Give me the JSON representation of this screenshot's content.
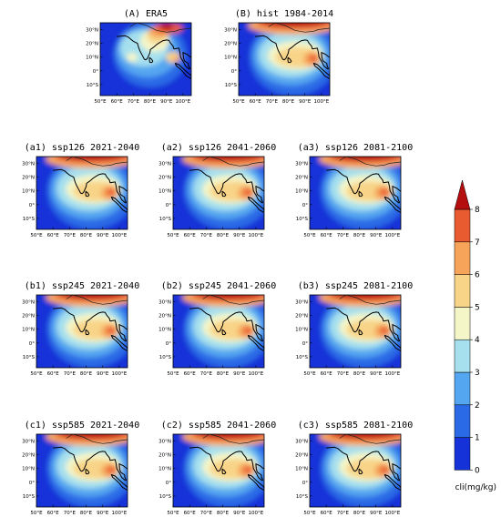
{
  "palette": [
    "#1432d8",
    "#2a6ae6",
    "#55a6f0",
    "#a6e0ee",
    "#f4f6c8",
    "#f8d488",
    "#f6a45a",
    "#e85a30",
    "#b40e0e"
  ],
  "colorbar": {
    "ticks": [
      "0",
      "1",
      "2",
      "3",
      "4",
      "5",
      "6",
      "7",
      "8"
    ],
    "label": "cli(mg/kg)"
  },
  "axes": {
    "lon_ticks": [
      "50°E",
      "60°E",
      "70°E",
      "80°E",
      "90°E",
      "100°E"
    ],
    "lat_ticks": [
      "30°N",
      "20°N",
      "10°N",
      "0°",
      "10°S"
    ],
    "lon_range": [
      50,
      105
    ],
    "lat_range": [
      -18,
      35
    ]
  },
  "panels": [
    {
      "id": "A",
      "title": "(A) ERA5"
    },
    {
      "id": "B",
      "title": "(B) hist 1984-2014"
    },
    {
      "id": "a1",
      "title": "(a1) ssp126 2021-2040"
    },
    {
      "id": "a2",
      "title": "(a2) ssp126 2041-2060"
    },
    {
      "id": "a3",
      "title": "(a3) ssp126 2081-2100"
    },
    {
      "id": "b1",
      "title": "(b1) ssp245 2021-2040"
    },
    {
      "id": "b2",
      "title": "(b2) ssp245 2041-2060"
    },
    {
      "id": "b3",
      "title": "(b3) ssp245 2081-2100"
    },
    {
      "id": "c1",
      "title": "(c1) ssp585 2021-2040"
    },
    {
      "id": "c2",
      "title": "(c2) ssp585 2041-2060"
    },
    {
      "id": "c3",
      "title": "(c3) ssp585 2081-2100"
    }
  ]
}
